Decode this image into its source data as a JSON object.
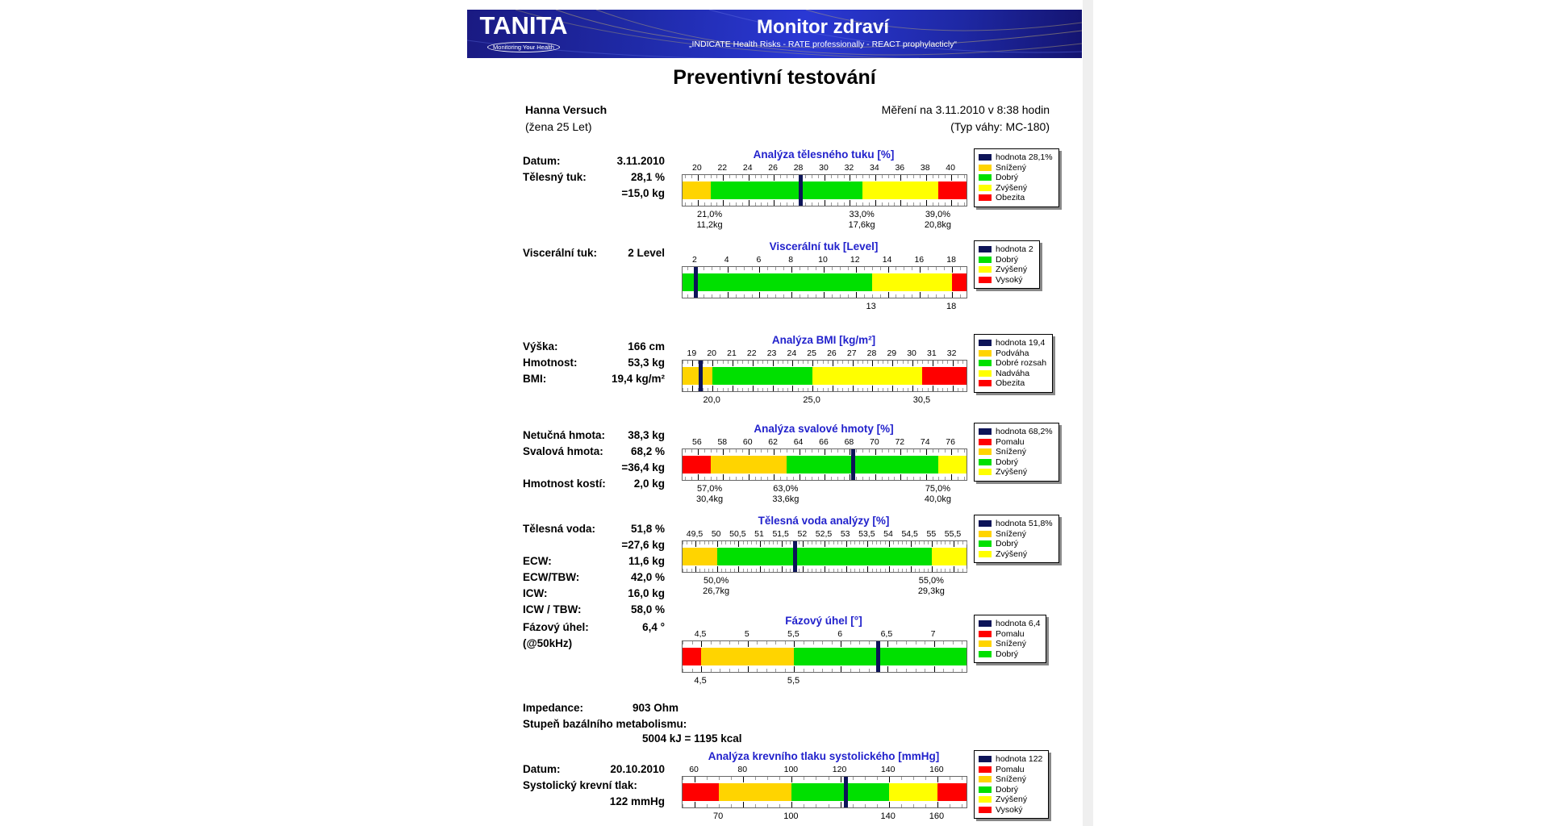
{
  "header": {
    "logo_text": "TANITA",
    "logo_tagline": "Monitoring Your Health",
    "title": "Monitor zdraví",
    "subtitle": "„INDICATE Health Risks - RATE professionally - REACT prophylacticly“"
  },
  "title": "Preventivní testování",
  "patient": {
    "name": "Hanna Versuch",
    "details": "(žena 25 Let)",
    "measured": "Měření na 3.11.2010 v 8:38 hodin",
    "device": "(Typ váhy: MC-180)"
  },
  "colors": {
    "gold": "#ffd400",
    "green": "#00e000",
    "yellow": "#ffff00",
    "red": "#ff0000",
    "navy": "#0d1458",
    "title_blue": "#2222cc"
  },
  "metabolism": {
    "impedance_label": "Impedance:",
    "impedance_value": "903 Ohm",
    "bmr_label": "Stupeň bazálního metabolismu:",
    "bmr_value": "5004 kJ = 1195 kcal"
  },
  "sections": [
    {
      "name": "body-fat",
      "rows": [
        [
          "Datum:",
          "3.11.2010"
        ],
        [
          "Tělesný tuk:",
          "28,1 %"
        ],
        [
          "",
          "=15,0 kg"
        ]
      ],
      "chart": 0
    },
    {
      "name": "visceral-fat",
      "rows": [
        [
          "Viscerální tuk:",
          "2 Level"
        ]
      ],
      "chart": 1
    },
    {
      "name": "bmi",
      "rows": [
        [
          "Výška:",
          "166 cm"
        ],
        [
          "Hmotnost:",
          "53,3 kg"
        ],
        [
          "BMI:",
          "19,4 kg/m²"
        ]
      ],
      "chart": 2
    },
    {
      "name": "muscle",
      "rows": [
        [
          "Netučná hmota:",
          "38,3 kg"
        ],
        [
          "Svalová hmota:",
          "68,2 %"
        ],
        [
          "",
          "=36,4 kg"
        ],
        [
          "Hmotnost kostí:",
          "2,0 kg"
        ]
      ],
      "chart": 3
    },
    {
      "name": "water",
      "rows": [
        [
          "Tělesná voda:",
          "51,8 %"
        ],
        [
          "",
          "=27,6 kg"
        ],
        [
          "ECW:",
          "11,6 kg"
        ],
        [
          "ECW/TBW:",
          "42,0 %"
        ],
        [
          "ICW:",
          "16,0 kg"
        ],
        [
          "ICW / TBW:",
          "58,0 %"
        ]
      ],
      "chart": 4
    },
    {
      "name": "phase-angle",
      "rows": [
        [
          "Fázový úhel:",
          "6,4 °"
        ],
        [
          "(@50kHz)",
          ""
        ]
      ],
      "chart": 5
    },
    {
      "name": "blood-pressure",
      "rows": [
        [
          "Datum:",
          "20.10.2010"
        ],
        [
          "Systolický krevní tlak:",
          ""
        ],
        [
          "",
          "122 mmHg"
        ]
      ],
      "chart": 6
    }
  ],
  "chart_data": [
    {
      "type": "bar",
      "title": "Analýza tělesného tuku [%]",
      "value": 28.1,
      "range": [
        18.8,
        41.2
      ],
      "minor_step": 0.5,
      "major_ticks": [
        [
          20,
          "20"
        ],
        [
          22,
          "22"
        ],
        [
          24,
          "24"
        ],
        [
          26,
          "26"
        ],
        [
          28,
          "28"
        ],
        [
          30,
          "30"
        ],
        [
          32,
          "32"
        ],
        [
          34,
          "34"
        ],
        [
          36,
          "36"
        ],
        [
          38,
          "38"
        ],
        [
          40,
          "40"
        ]
      ],
      "bands": [
        {
          "from": 18.8,
          "to": 21,
          "color": "gold"
        },
        {
          "from": 21,
          "to": 33,
          "color": "green"
        },
        {
          "from": 33,
          "to": 39,
          "color": "yellow"
        },
        {
          "from": 39,
          "to": 41.2,
          "color": "red"
        }
      ],
      "boundary_labels": [
        {
          "v": 21,
          "lines": [
            "21,0%",
            "11,2kg"
          ]
        },
        {
          "v": 33,
          "lines": [
            "33,0%",
            "17,6kg"
          ]
        },
        {
          "v": 39,
          "lines": [
            "39,0%",
            "20,8kg"
          ]
        }
      ],
      "legend": [
        {
          "color": "navy",
          "label": "hodnota 28,1%"
        },
        {
          "color": "gold",
          "label": "Snížený"
        },
        {
          "color": "green",
          "label": "Dobrý"
        },
        {
          "color": "yellow",
          "label": "Zvýšený"
        },
        {
          "color": "red",
          "label": "Obezita"
        }
      ]
    },
    {
      "type": "bar",
      "title": "Viscerální tuk [Level]",
      "value": 2,
      "range": [
        1.2,
        18.9
      ],
      "minor_step": 0.5,
      "major_ticks": [
        [
          2,
          "2"
        ],
        [
          4,
          "4"
        ],
        [
          6,
          "6"
        ],
        [
          8,
          "8"
        ],
        [
          10,
          "10"
        ],
        [
          12,
          "12"
        ],
        [
          14,
          "14"
        ],
        [
          16,
          "16"
        ],
        [
          18,
          "18"
        ]
      ],
      "bands": [
        {
          "from": 1.2,
          "to": 13,
          "color": "green"
        },
        {
          "from": 13,
          "to": 18,
          "color": "yellow"
        },
        {
          "from": 18,
          "to": 18.9,
          "color": "red"
        }
      ],
      "boundary_labels": [
        {
          "v": 13,
          "lines": [
            "13"
          ]
        },
        {
          "v": 18,
          "lines": [
            "18"
          ]
        }
      ],
      "legend": [
        {
          "color": "navy",
          "label": "hodnota 2"
        },
        {
          "color": "green",
          "label": "Dobrý"
        },
        {
          "color": "yellow",
          "label": "Zvýšený"
        },
        {
          "color": "red",
          "label": "Vysoký"
        }
      ]
    },
    {
      "type": "bar",
      "title": "Analýza BMI [kg/m²]",
      "value": 19.4,
      "range": [
        18.5,
        32.7
      ],
      "minor_step": 0.25,
      "major_ticks": [
        [
          19,
          "19"
        ],
        [
          20,
          "20"
        ],
        [
          21,
          "21"
        ],
        [
          22,
          "22"
        ],
        [
          23,
          "23"
        ],
        [
          24,
          "24"
        ],
        [
          25,
          "25"
        ],
        [
          26,
          "26"
        ],
        [
          27,
          "27"
        ],
        [
          28,
          "28"
        ],
        [
          29,
          "29"
        ],
        [
          30,
          "30"
        ],
        [
          31,
          "31"
        ],
        [
          32,
          "32"
        ]
      ],
      "bands": [
        {
          "from": 18.5,
          "to": 20,
          "color": "gold"
        },
        {
          "from": 20,
          "to": 25,
          "color": "green"
        },
        {
          "from": 25,
          "to": 30.5,
          "color": "yellow"
        },
        {
          "from": 30.5,
          "to": 32.7,
          "color": "red"
        }
      ],
      "boundary_labels": [
        {
          "v": 20,
          "lines": [
            "20,0"
          ]
        },
        {
          "v": 25,
          "lines": [
            "25,0"
          ]
        },
        {
          "v": 30.5,
          "lines": [
            "30,5"
          ]
        }
      ],
      "legend": [
        {
          "color": "navy",
          "label": "hodnota 19,4"
        },
        {
          "color": "gold",
          "label": "Podváha"
        },
        {
          "color": "green",
          "label": "Dobré rozsah"
        },
        {
          "color": "yellow",
          "label": "Nadváha"
        },
        {
          "color": "red",
          "label": "Obezita"
        }
      ]
    },
    {
      "type": "bar",
      "title": "Analýza svalové hmoty [%]",
      "value": 68.2,
      "range": [
        54.8,
        77.2
      ],
      "minor_step": 0.5,
      "major_ticks": [
        [
          56,
          "56"
        ],
        [
          58,
          "58"
        ],
        [
          60,
          "60"
        ],
        [
          62,
          "62"
        ],
        [
          64,
          "64"
        ],
        [
          66,
          "66"
        ],
        [
          68,
          "68"
        ],
        [
          70,
          "70"
        ],
        [
          72,
          "72"
        ],
        [
          74,
          "74"
        ],
        [
          76,
          "76"
        ]
      ],
      "bands": [
        {
          "from": 54.8,
          "to": 57,
          "color": "red"
        },
        {
          "from": 57,
          "to": 63,
          "color": "gold"
        },
        {
          "from": 63,
          "to": 75,
          "color": "green"
        },
        {
          "from": 75,
          "to": 77.2,
          "color": "yellow"
        }
      ],
      "boundary_labels": [
        {
          "v": 57,
          "lines": [
            "57,0%",
            "30,4kg"
          ]
        },
        {
          "v": 63,
          "lines": [
            "63,0%",
            "33,6kg"
          ]
        },
        {
          "v": 75,
          "lines": [
            "75,0%",
            "40,0kg"
          ]
        }
      ],
      "legend": [
        {
          "color": "navy",
          "label": "hodnota 68,2%"
        },
        {
          "color": "red",
          "label": "Pomalu"
        },
        {
          "color": "gold",
          "label": "Snížený"
        },
        {
          "color": "green",
          "label": "Dobrý"
        },
        {
          "color": "yellow",
          "label": "Zvýšený"
        }
      ]
    },
    {
      "type": "bar",
      "title": "Tělesná voda analýzy [%]",
      "value": 51.8,
      "range": [
        49.2,
        55.8
      ],
      "minor_step": 0.1,
      "major_ticks": [
        [
          49.5,
          "49,5"
        ],
        [
          50,
          "50"
        ],
        [
          50.5,
          "50,5"
        ],
        [
          51,
          "51"
        ],
        [
          51.5,
          "51,5"
        ],
        [
          52,
          "52"
        ],
        [
          52.5,
          "52,5"
        ],
        [
          53,
          "53"
        ],
        [
          53.5,
          "53,5"
        ],
        [
          54,
          "54"
        ],
        [
          54.5,
          "54,5"
        ],
        [
          55,
          "55"
        ],
        [
          55.5,
          "55,5"
        ]
      ],
      "bands": [
        {
          "from": 49.2,
          "to": 50,
          "color": "gold"
        },
        {
          "from": 50,
          "to": 55,
          "color": "green"
        },
        {
          "from": 55,
          "to": 55.8,
          "color": "yellow"
        }
      ],
      "boundary_labels": [
        {
          "v": 50,
          "lines": [
            "50,0%",
            "26,7kg"
          ]
        },
        {
          "v": 55,
          "lines": [
            "55,0%",
            "29,3kg"
          ]
        }
      ],
      "legend": [
        {
          "color": "navy",
          "label": "hodnota 51,8%"
        },
        {
          "color": "gold",
          "label": "Snížený"
        },
        {
          "color": "green",
          "label": "Dobrý"
        },
        {
          "color": "yellow",
          "label": "Zvýšený"
        }
      ]
    },
    {
      "type": "bar",
      "title": "Fázový úhel [°]",
      "value": 6.4,
      "range": [
        4.3,
        7.35
      ],
      "minor_step": 0.1,
      "major_ticks": [
        [
          4.5,
          "4,5"
        ],
        [
          5,
          "5"
        ],
        [
          5.5,
          "5,5"
        ],
        [
          6,
          "6"
        ],
        [
          6.5,
          "6,5"
        ],
        [
          7,
          "7"
        ]
      ],
      "bands": [
        {
          "from": 4.3,
          "to": 4.5,
          "color": "red"
        },
        {
          "from": 4.5,
          "to": 5.5,
          "color": "gold"
        },
        {
          "from": 5.5,
          "to": 7.35,
          "color": "green"
        }
      ],
      "boundary_labels": [
        {
          "v": 4.5,
          "lines": [
            "4,5"
          ]
        },
        {
          "v": 5.5,
          "lines": [
            "5,5"
          ]
        }
      ],
      "legend": [
        {
          "color": "navy",
          "label": "hodnota 6,4"
        },
        {
          "color": "red",
          "label": "Pomalu"
        },
        {
          "color": "gold",
          "label": "Snížený"
        },
        {
          "color": "green",
          "label": "Dobrý"
        }
      ]
    },
    {
      "type": "bar",
      "title": "Analýza krevního tlaku systolického [mmHg]",
      "value": 122,
      "range": [
        55,
        172
      ],
      "minor_step": 5,
      "major_ticks": [
        [
          60,
          "60"
        ],
        [
          80,
          "80"
        ],
        [
          100,
          "100"
        ],
        [
          120,
          "120"
        ],
        [
          140,
          "140"
        ],
        [
          160,
          "160"
        ]
      ],
      "bands": [
        {
          "from": 55,
          "to": 70,
          "color": "red"
        },
        {
          "from": 70,
          "to": 100,
          "color": "gold"
        },
        {
          "from": 100,
          "to": 140,
          "color": "green"
        },
        {
          "from": 140,
          "to": 160,
          "color": "yellow"
        },
        {
          "from": 160,
          "to": 172,
          "color": "red"
        }
      ],
      "boundary_labels": [
        {
          "v": 70,
          "lines": [
            "70"
          ]
        },
        {
          "v": 100,
          "lines": [
            "100"
          ]
        },
        {
          "v": 140,
          "lines": [
            "140"
          ]
        },
        {
          "v": 160,
          "lines": [
            "160"
          ]
        }
      ],
      "legend": [
        {
          "color": "navy",
          "label": "hodnota 122"
        },
        {
          "color": "red",
          "label": "Pomalu"
        },
        {
          "color": "gold",
          "label": "Snížený"
        },
        {
          "color": "green",
          "label": "Dobrý"
        },
        {
          "color": "yellow",
          "label": "Zvýšený"
        },
        {
          "color": "red",
          "label": "Vysoký"
        }
      ]
    }
  ]
}
